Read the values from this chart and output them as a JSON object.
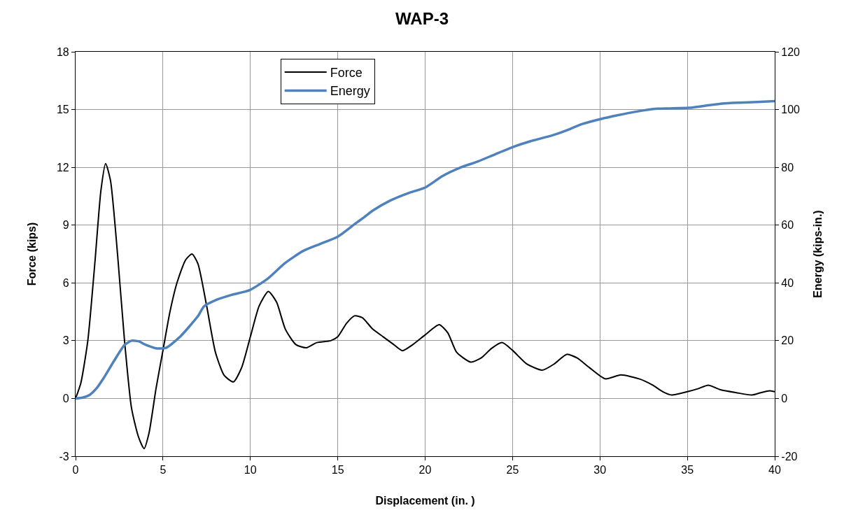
{
  "chart_data": {
    "type": "line",
    "title": "WAP-3",
    "xlabel": "Displacement (in. )",
    "ylabel": "Force (kips)",
    "y2label": "Energy (kips-in.)",
    "xlim": [
      0,
      40
    ],
    "xticks": [
      0,
      5,
      10,
      15,
      20,
      25,
      30,
      35,
      40
    ],
    "ylim": [
      -3,
      18
    ],
    "yticks": [
      -3,
      0,
      3,
      6,
      9,
      12,
      15,
      18
    ],
    "y2lim": [
      -20,
      120
    ],
    "y2ticks": [
      -20,
      0,
      20,
      40,
      60,
      80,
      100,
      120
    ],
    "grid": true,
    "legend": "top left",
    "marker": "none",
    "line_style": "solid",
    "series": [
      {
        "name": "Force",
        "color": "#000000",
        "x": [
          0,
          0.3,
          0.7,
          1.1,
          1.45,
          1.72,
          2.0,
          2.4,
          2.8,
          3.2,
          3.6,
          3.92,
          4.2,
          4.6,
          5.0,
          5.4,
          5.8,
          6.3,
          6.66,
          7.0,
          7.5,
          8.0,
          8.5,
          9.03,
          9.5,
          10.0,
          10.5,
          11.03,
          11.5,
          12.0,
          12.6,
          13.2,
          13.8,
          14.6,
          15.0,
          15.5,
          15.96,
          16.4,
          17.0,
          17.6,
          18.2,
          18.7,
          19.3,
          20.0,
          20.8,
          21.3,
          21.8,
          22.6,
          23.2,
          23.8,
          24.4,
          25.0,
          25.8,
          26.7,
          27.4,
          28.1,
          28.7,
          29.4,
          30.3,
          31.2,
          32.3,
          33.0,
          33.6,
          34.1,
          35.0,
          35.6,
          36.2,
          36.9,
          37.8,
          38.7,
          39.2,
          39.7,
          40
        ],
        "values": [
          0,
          0.8,
          3,
          7,
          10.8,
          12.2,
          11.3,
          7.5,
          3,
          -0.5,
          -2,
          -2.6,
          -1.8,
          0.5,
          2.5,
          4.5,
          6,
          7.2,
          7.5,
          7.0,
          4.8,
          2.4,
          1.2,
          0.86,
          1.6,
          3.2,
          4.8,
          5.56,
          5.0,
          3.6,
          2.8,
          2.63,
          2.9,
          3.0,
          3.2,
          3.9,
          4.29,
          4.2,
          3.6,
          3.2,
          2.8,
          2.48,
          2.8,
          3.3,
          3.83,
          3.4,
          2.4,
          1.89,
          2.1,
          2.6,
          2.9,
          2.5,
          1.8,
          1.47,
          1.8,
          2.29,
          2.1,
          1.6,
          1.02,
          1.22,
          1.0,
          0.7,
          0.35,
          0.18,
          0.35,
          0.5,
          0.69,
          0.45,
          0.3,
          0.18,
          0.3,
          0.4,
          0.35
        ]
      },
      {
        "name": "Energy",
        "color": "#4f81bd",
        "axis": "y2",
        "x": [
          0,
          0.4,
          0.8,
          1.2,
          1.6,
          2.2,
          2.8,
          3.2,
          3.6,
          4.0,
          4.66,
          5.2,
          6.0,
          7.0,
          7.35,
          8.0,
          8.9,
          9.96,
          11.0,
          11.95,
          13.0,
          14.0,
          15.0,
          16.0,
          16.5,
          17.0,
          18.0,
          19.0,
          20.0,
          21.0,
          22.1,
          23.0,
          24.0,
          25.1,
          26.0,
          27.0,
          27.5,
          28.0,
          29.0,
          30.1,
          31.0,
          32.0,
          33.3,
          34.0,
          35.1,
          36.0,
          37.0,
          38.0,
          39.0,
          40
        ],
        "values": [
          0,
          0.3,
          1.2,
          3.5,
          7,
          13,
          18.5,
          20,
          19.8,
          18.6,
          17.3,
          17.6,
          21.5,
          28.5,
          31.9,
          34,
          35.8,
          37.5,
          41.5,
          46.7,
          51,
          53.5,
          56,
          60.5,
          62.7,
          65,
          68.5,
          71,
          73,
          77,
          80.1,
          82,
          84.5,
          87.2,
          89,
          90.6,
          91.5,
          92.6,
          95,
          96.8,
          98,
          99.2,
          100.3,
          100.4,
          100.6,
          101.3,
          102.1,
          102.4,
          102.6,
          102.9
        ]
      }
    ]
  }
}
